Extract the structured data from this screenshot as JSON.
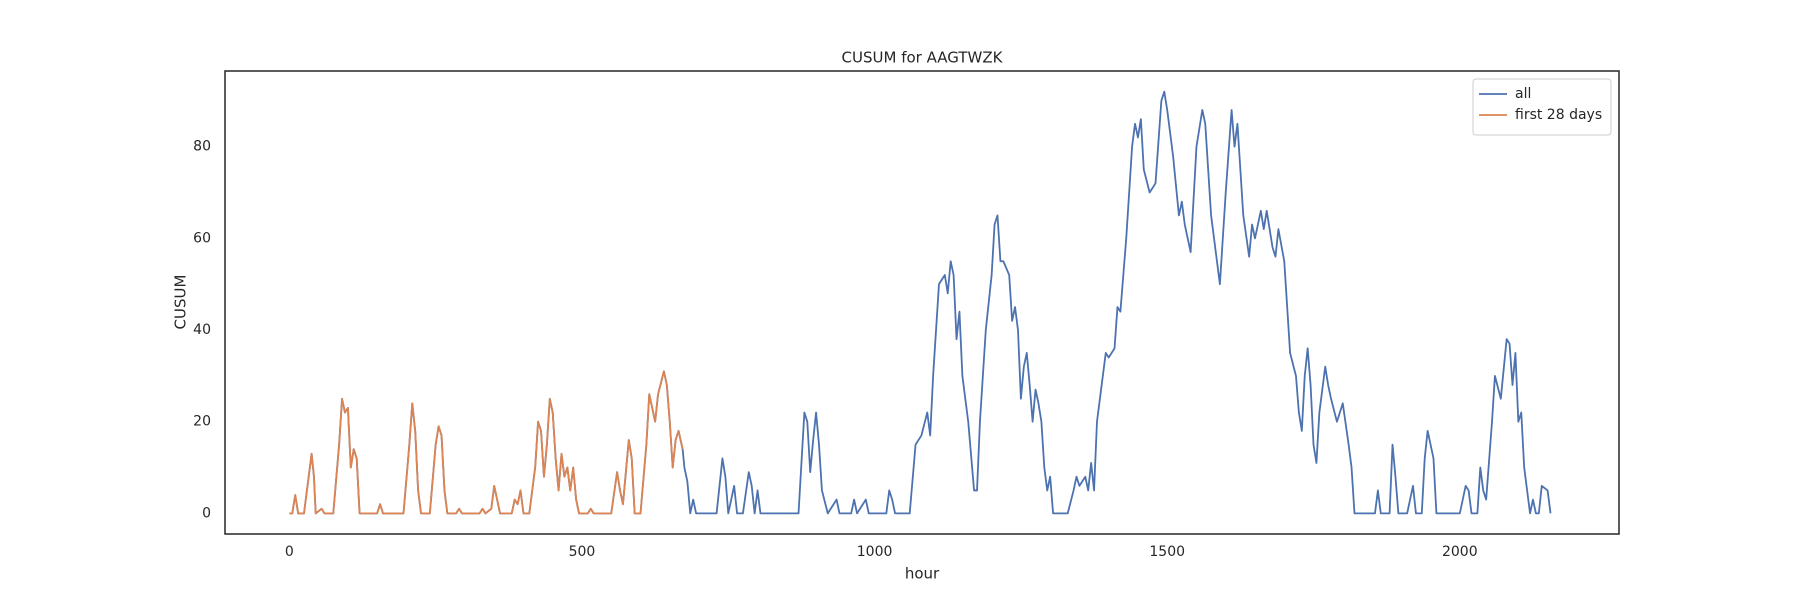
{
  "chart_data": {
    "type": "line",
    "title": "CUSUM for AAGTWZK",
    "x_label": "hour",
    "y_label": "CUSUM",
    "xlim": [
      -110,
      2272
    ],
    "ylim": [
      -4.5,
      96.5
    ],
    "xticks": [
      0,
      500,
      1000,
      1500,
      2000
    ],
    "yticks": [
      0,
      20,
      40,
      60,
      80
    ],
    "grid": false,
    "legend": "upper right",
    "series": [
      {
        "name": "all",
        "color": "#4c72b0",
        "x": [
          0,
          5,
          10,
          15,
          25,
          35,
          38,
          42,
          45,
          55,
          60,
          75,
          85,
          90,
          95,
          100,
          105,
          110,
          115,
          120,
          150,
          155,
          160,
          195,
          205,
          210,
          215,
          220,
          225,
          240,
          250,
          255,
          260,
          265,
          270,
          285,
          290,
          295,
          325,
          330,
          335,
          345,
          350,
          355,
          360,
          380,
          385,
          390,
          395,
          400,
          410,
          420,
          425,
          430,
          435,
          440,
          445,
          450,
          455,
          460,
          465,
          470,
          475,
          480,
          485,
          490,
          495,
          510,
          515,
          520,
          550,
          560,
          565,
          570,
          580,
          585,
          590,
          600,
          610,
          615,
          625,
          630,
          640,
          645,
          650,
          655,
          660,
          665,
          672,
          675,
          680,
          685,
          690,
          695,
          730,
          740,
          745,
          750,
          760,
          765,
          775,
          785,
          790,
          795,
          800,
          805,
          815,
          870,
          880,
          885,
          890,
          895,
          900,
          905,
          910,
          920,
          935,
          940,
          960,
          965,
          970,
          985,
          990,
          1020,
          1025,
          1030,
          1035,
          1060,
          1070,
          1080,
          1090,
          1095,
          1100,
          1110,
          1120,
          1125,
          1130,
          1135,
          1140,
          1145,
          1150,
          1160,
          1170,
          1175,
          1180,
          1190,
          1200,
          1205,
          1210,
          1215,
          1220,
          1230,
          1235,
          1240,
          1245,
          1250,
          1255,
          1260,
          1265,
          1270,
          1275,
          1280,
          1285,
          1290,
          1295,
          1300,
          1305,
          1330,
          1340,
          1345,
          1350,
          1360,
          1365,
          1370,
          1375,
          1380,
          1390,
          1395,
          1400,
          1410,
          1415,
          1420,
          1430,
          1440,
          1445,
          1450,
          1455,
          1460,
          1470,
          1480,
          1490,
          1495,
          1500,
          1510,
          1520,
          1525,
          1530,
          1540,
          1550,
          1560,
          1565,
          1575,
          1580,
          1590,
          1600,
          1610,
          1615,
          1620,
          1630,
          1640,
          1645,
          1650,
          1660,
          1665,
          1670,
          1680,
          1685,
          1690,
          1700,
          1710,
          1720,
          1725,
          1730,
          1735,
          1740,
          1745,
          1750,
          1755,
          1760,
          1770,
          1775,
          1780,
          1790,
          1800,
          1810,
          1815,
          1820,
          1855,
          1860,
          1865,
          1880,
          1885,
          1890,
          1895,
          1910,
          1920,
          1925,
          1935,
          1940,
          1945,
          1955,
          1960,
          2000,
          2010,
          2015,
          2020,
          2030,
          2035,
          2040,
          2045,
          2055,
          2060,
          2070,
          2080,
          2085,
          2090,
          2095,
          2100,
          2105,
          2110,
          2115,
          2120,
          2125,
          2130,
          2135,
          2140,
          2150,
          2155
        ],
        "values": [
          0,
          0,
          4,
          0,
          0,
          10,
          13,
          8,
          0,
          1,
          0,
          0,
          15,
          25,
          22,
          23,
          10,
          14,
          12,
          0,
          0,
          2,
          0,
          0,
          15,
          24,
          18,
          5,
          0,
          0,
          15,
          19,
          17,
          5,
          0,
          0,
          1,
          0,
          0,
          1,
          0,
          1,
          6,
          3,
          0,
          0,
          3,
          2,
          5,
          0,
          0,
          10,
          20,
          18,
          8,
          15,
          25,
          22,
          12,
          5,
          13,
          8,
          10,
          5,
          10,
          3,
          0,
          0,
          1,
          0,
          0,
          9,
          5,
          2,
          16,
          12,
          0,
          0,
          15,
          26,
          20,
          26,
          31,
          28,
          20,
          10,
          16,
          18,
          14,
          10,
          7,
          0,
          3,
          0,
          0,
          12,
          8,
          0,
          6,
          0,
          0,
          9,
          6,
          0,
          5,
          0,
          0,
          0,
          22,
          20,
          9,
          16,
          22,
          15,
          5,
          0,
          3,
          0,
          0,
          3,
          0,
          3,
          0,
          0,
          5,
          3,
          0,
          0,
          15,
          17,
          22,
          17,
          30,
          50,
          52,
          48,
          55,
          52,
          38,
          44,
          30,
          20,
          5,
          5,
          20,
          40,
          52,
          63,
          65,
          55,
          55,
          52,
          42,
          45,
          40,
          25,
          32,
          35,
          28,
          20,
          27,
          24,
          20,
          10,
          5,
          8,
          0,
          0,
          5,
          8,
          6,
          8,
          5,
          11,
          5,
          20,
          30,
          35,
          34,
          36,
          45,
          44,
          60,
          80,
          85,
          82,
          86,
          75,
          70,
          72,
          90,
          92,
          88,
          78,
          65,
          68,
          63,
          57,
          80,
          88,
          85,
          65,
          60,
          50,
          70,
          88,
          80,
          85,
          65,
          56,
          63,
          60,
          66,
          62,
          66,
          58,
          56,
          62,
          55,
          35,
          30,
          22,
          18,
          30,
          36,
          28,
          15,
          11,
          22,
          32,
          28,
          25,
          20,
          24,
          15,
          10,
          0,
          0,
          5,
          0,
          0,
          15,
          8,
          0,
          0,
          6,
          0,
          0,
          12,
          18,
          12,
          0,
          0,
          6,
          5,
          0,
          0,
          10,
          5,
          3,
          20,
          30,
          25,
          38,
          37,
          28,
          35,
          20,
          22,
          10,
          5,
          0,
          3,
          0,
          0,
          6,
          5,
          0
        ]
      },
      {
        "name": "first 28 days",
        "color": "#dd8452",
        "x": [
          0,
          5,
          10,
          15,
          25,
          35,
          38,
          42,
          45,
          55,
          60,
          75,
          85,
          90,
          95,
          100,
          105,
          110,
          115,
          120,
          150,
          155,
          160,
          195,
          205,
          210,
          215,
          220,
          225,
          240,
          250,
          255,
          260,
          265,
          270,
          285,
          290,
          295,
          325,
          330,
          335,
          345,
          350,
          355,
          360,
          380,
          385,
          390,
          395,
          400,
          410,
          420,
          425,
          430,
          435,
          440,
          445,
          450,
          455,
          460,
          465,
          470,
          475,
          480,
          485,
          490,
          495,
          510,
          515,
          520,
          550,
          560,
          565,
          570,
          580,
          585,
          590,
          600,
          610,
          615,
          625,
          630,
          640,
          645,
          650,
          655,
          660,
          665,
          672
        ],
        "values": [
          0,
          0,
          4,
          0,
          0,
          10,
          13,
          8,
          0,
          1,
          0,
          0,
          15,
          25,
          22,
          23,
          10,
          14,
          12,
          0,
          0,
          2,
          0,
          0,
          15,
          24,
          18,
          5,
          0,
          0,
          15,
          19,
          17,
          5,
          0,
          0,
          1,
          0,
          0,
          1,
          0,
          1,
          6,
          3,
          0,
          0,
          3,
          2,
          5,
          0,
          0,
          10,
          20,
          18,
          8,
          15,
          25,
          22,
          12,
          5,
          13,
          8,
          10,
          5,
          10,
          3,
          0,
          0,
          1,
          0,
          0,
          9,
          5,
          2,
          16,
          12,
          0,
          0,
          15,
          26,
          20,
          26,
          31,
          28,
          20,
          10,
          16,
          18,
          14
        ]
      }
    ]
  }
}
